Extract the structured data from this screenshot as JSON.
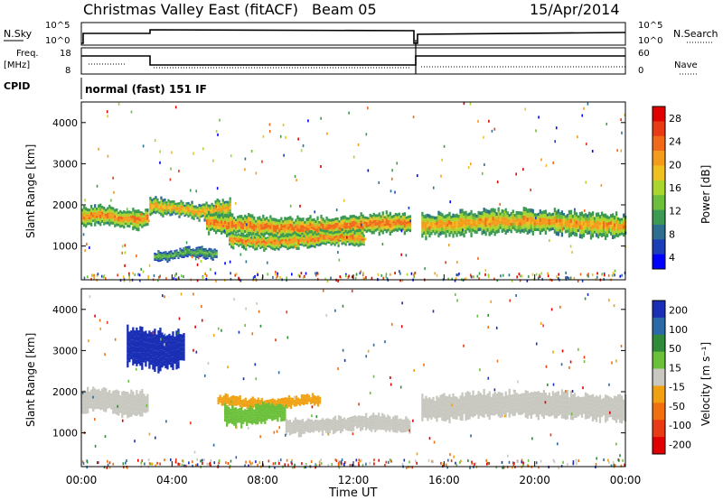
{
  "header": {
    "station": "Christmas Valley East (fitACF)",
    "beam": "Beam 05",
    "date": "15/Apr/2014"
  },
  "top_panel": {
    "left_label": "N.Sky",
    "right_label": "N.Search",
    "left_ticks": [
      "10^5",
      "10^0"
    ],
    "right_ticks": [
      "10^5",
      "10^0"
    ]
  },
  "freq_panel": {
    "left_label_1": "Freq.",
    "left_label_2": "[MHz]",
    "right_label": "Nave",
    "left_ticks": [
      "18",
      "8"
    ],
    "right_ticks": [
      "60",
      "0"
    ]
  },
  "cpid": {
    "label": "CPID",
    "value": "normal (fast) 151 IF"
  },
  "x_axis": {
    "label": "Time UT",
    "ticks": [
      "00:00",
      "04:00",
      "08:00",
      "12:00",
      "16:00",
      "20:00",
      "00:00"
    ]
  },
  "power_panel": {
    "ylabel": "Slant Range [km]",
    "yticks": [
      "4000",
      "3000",
      "2000",
      "1000"
    ],
    "colorbar_label": "Power [dB]",
    "colorbar_ticks": [
      "28",
      "24",
      "20",
      "16",
      "12",
      "8",
      "4"
    ],
    "colors": [
      "#0000ff",
      "#1c3fb8",
      "#2e6e8e",
      "#3d9a52",
      "#6cbf3c",
      "#a8d62e",
      "#f0c020",
      "#f39c1c",
      "#f06a1a",
      "#e83a14",
      "#e00000"
    ]
  },
  "velocity_panel": {
    "ylabel": "Slant Range [km]",
    "yticks": [
      "4000",
      "3000",
      "2000",
      "1000"
    ],
    "colorbar_label": "Velocity [m s⁻¹]",
    "colorbar_ticks": [
      "200",
      "100",
      "50",
      "15",
      "-15",
      "-50",
      "-100",
      "-200"
    ],
    "colors": [
      "#1a2fb5",
      "#2a6aa8",
      "#2f8a3a",
      "#6bc03a",
      "#c8c8c0",
      "#f0a010",
      "#f07010",
      "#e83a14",
      "#e00000"
    ]
  },
  "chart_data": [
    {
      "type": "heatmap",
      "title": "Power",
      "xlabel": "Time UT",
      "ylabel": "Slant Range [km]",
      "xlim": [
        0,
        24
      ],
      "ylim": [
        180,
        4500
      ],
      "zlabel": "Power [dB]",
      "zlim": [
        0,
        32
      ],
      "bands": [
        {
          "t": [
            0,
            2.9
          ],
          "range_center": 1700,
          "range_halfwidth": 230,
          "peak_db": 28
        },
        {
          "t": [
            3.0,
            6.6
          ],
          "range_center": 1900,
          "range_halfwidth": 200,
          "peak_db": 26
        },
        {
          "t": [
            5.5,
            14.5
          ],
          "range_center": 1500,
          "range_halfwidth": 250,
          "peak_db": 30
        },
        {
          "t": [
            6.5,
            12.5
          ],
          "range_center": 1150,
          "range_halfwidth": 180,
          "peak_db": 28
        },
        {
          "t": [
            3.2,
            6.0
          ],
          "range_center": 800,
          "range_halfwidth": 120,
          "peak_db": 14
        },
        {
          "t": [
            15.0,
            24.0
          ],
          "range_center": 1550,
          "range_halfwidth": 280,
          "peak_db": 27
        }
      ]
    },
    {
      "type": "heatmap",
      "title": "Velocity",
      "xlabel": "Time UT",
      "ylabel": "Slant Range [km]",
      "xlim": [
        0,
        24
      ],
      "ylim": [
        180,
        4500
      ],
      "zlabel": "Velocity [m s⁻¹]",
      "zlim": [
        -200,
        200
      ],
      "bands": [
        {
          "t": [
            0,
            2.9
          ],
          "range_center": 1750,
          "range_halfwidth": 280,
          "velocity": 0
        },
        {
          "t": [
            2.0,
            4.5
          ],
          "range_center": 3050,
          "range_halfwidth": 450,
          "velocity": 200
        },
        {
          "t": [
            6.0,
            10.5
          ],
          "range_center": 1750,
          "range_halfwidth": 120,
          "velocity": -50
        },
        {
          "t": [
            6.3,
            9.0
          ],
          "range_center": 1450,
          "range_halfwidth": 220,
          "velocity": 50
        },
        {
          "t": [
            9.0,
            14.5
          ],
          "range_center": 1200,
          "range_halfwidth": 180,
          "velocity": 0
        },
        {
          "t": [
            15.0,
            24.0
          ],
          "range_center": 1650,
          "range_halfwidth": 300,
          "velocity": 0
        }
      ]
    }
  ]
}
